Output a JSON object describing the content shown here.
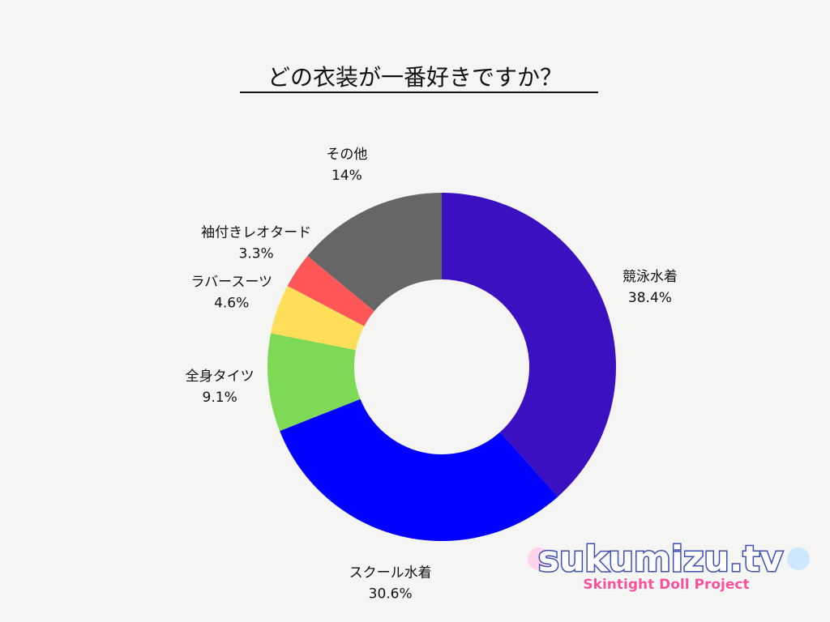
{
  "chart_data": {
    "type": "pie",
    "title": "どの衣装が一番好きですか？",
    "categories": [
      "競泳水着",
      "スクール水着",
      "全身タイツ",
      "ラバースーツ",
      "袖付きレオタード",
      "その他"
    ],
    "values": [
      38.4,
      30.6,
      9.1,
      4.6,
      3.3,
      14
    ],
    "value_labels": [
      "38.4%",
      "30.6%",
      "9.1%",
      "4.6%",
      "3.3%",
      "14%"
    ],
    "colors": [
      "#3a10c0",
      "#0000ff",
      "#7ed957",
      "#ffde59",
      "#ff5757",
      "#666666"
    ]
  },
  "watermark": {
    "title": "sukumizu.tv",
    "subtitle": "Skintight Doll Project"
  }
}
